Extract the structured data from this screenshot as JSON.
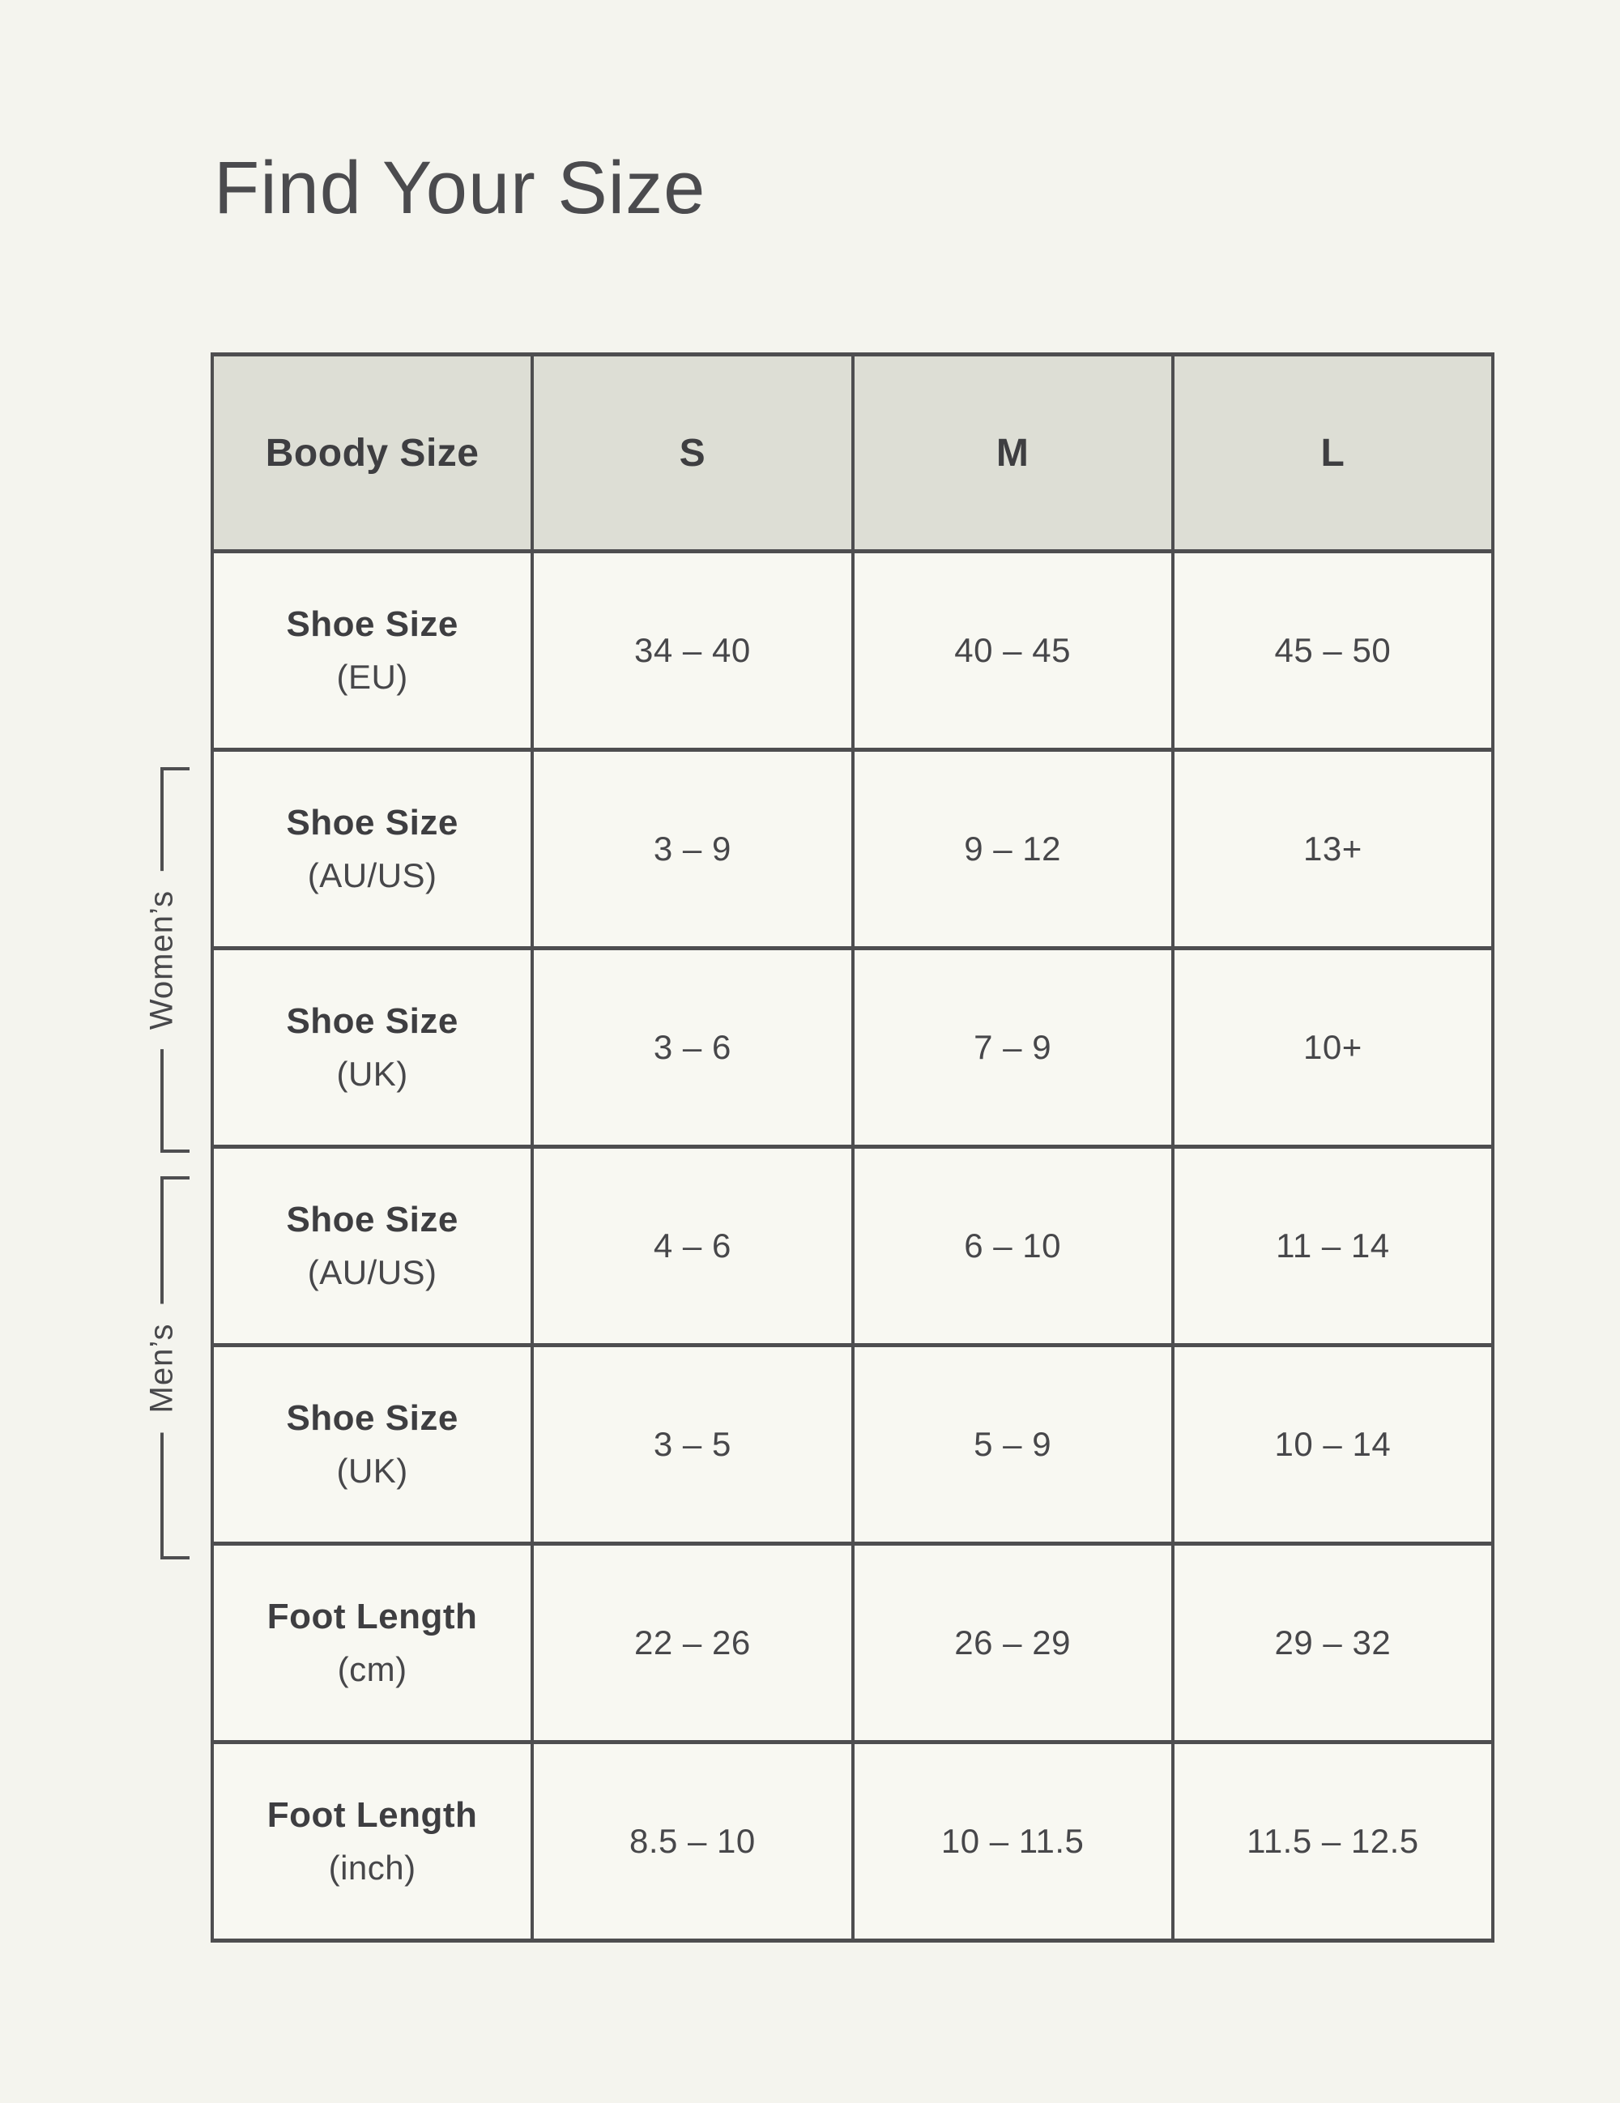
{
  "page": {
    "title": "Find Your Size"
  },
  "colors": {
    "page_background": "#F4F4EE",
    "cell_background": "#F8F8F2",
    "header_background": "#DDDED5",
    "border": "#4E4E50",
    "text": "#47474A"
  },
  "groups": {
    "womens": "Women’s",
    "mens": "Men’s"
  },
  "chart_data": {
    "type": "table",
    "title": "Find Your Size",
    "columns": [
      "Boody Size",
      "S",
      "M",
      "L"
    ],
    "rows": [
      {
        "label": "Shoe Size",
        "unit": "(EU)",
        "group": "",
        "values": [
          "34 – 40",
          "40 – 45",
          "45 – 50"
        ]
      },
      {
        "label": "Shoe Size",
        "unit": "(AU/US)",
        "group": "Women’s",
        "values": [
          "3 – 9",
          "9 – 12",
          "13+"
        ]
      },
      {
        "label": "Shoe Size",
        "unit": "(UK)",
        "group": "Women’s",
        "values": [
          "3 – 6",
          "7 – 9",
          "10+"
        ]
      },
      {
        "label": "Shoe Size",
        "unit": "(AU/US)",
        "group": "Men’s",
        "values": [
          "4 – 6",
          "6 – 10",
          "11 – 14"
        ]
      },
      {
        "label": "Shoe Size",
        "unit": "(UK)",
        "group": "Men’s",
        "values": [
          "3 – 5",
          "5 – 9",
          "10 – 14"
        ]
      },
      {
        "label": "Foot Length",
        "unit": "(cm)",
        "group": "",
        "values": [
          "22 – 26",
          "26 – 29",
          "29 – 32"
        ]
      },
      {
        "label": "Foot Length",
        "unit": "(inch)",
        "group": "",
        "values": [
          "8.5 – 10",
          "10 – 11.5",
          "11.5 – 12.5"
        ]
      }
    ],
    "layout": {
      "grid": "on",
      "womens_group_rows": [
        2,
        3
      ],
      "mens_group_rows": [
        4,
        5
      ]
    }
  }
}
